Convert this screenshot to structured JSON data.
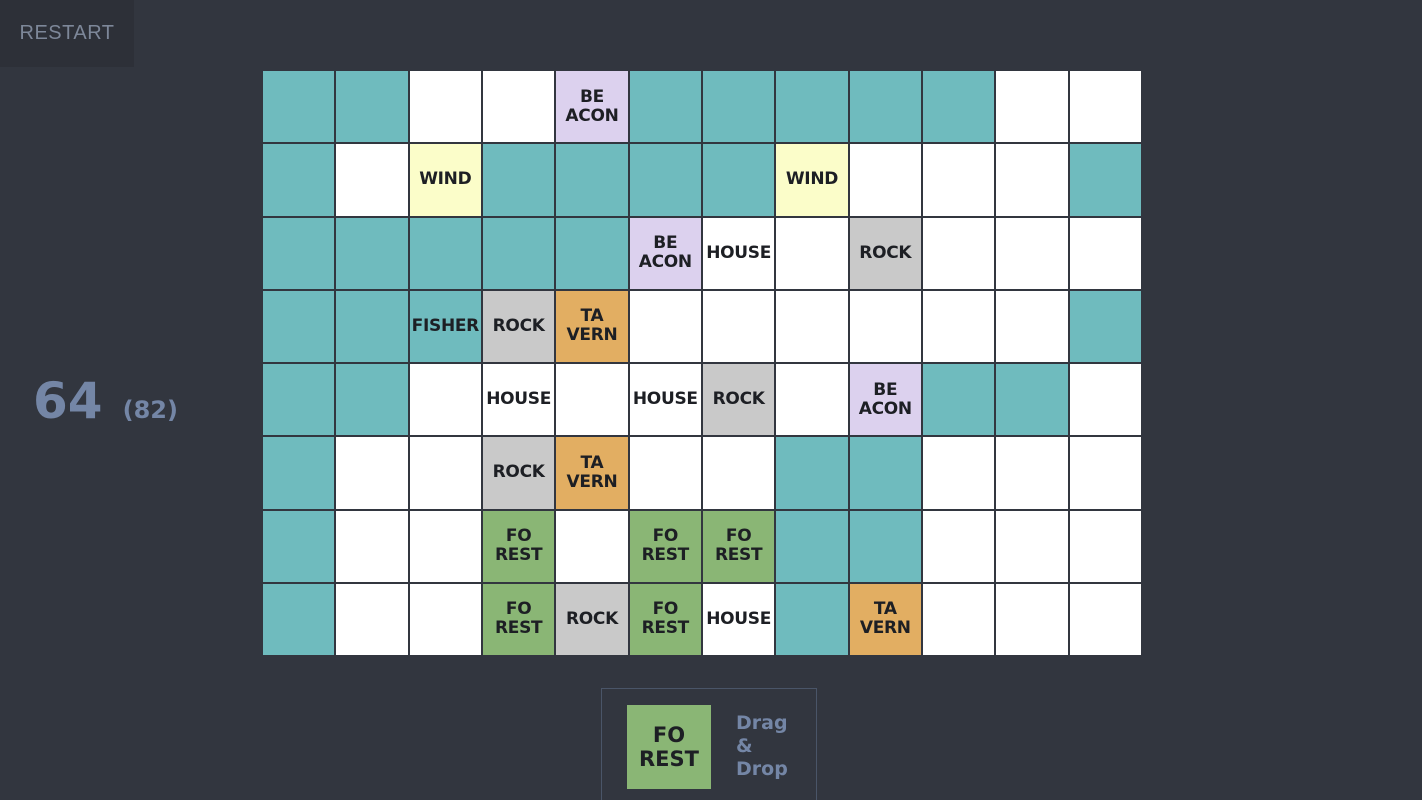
{
  "header": {
    "restart_label": "RESTART"
  },
  "score": {
    "current": "64",
    "best": "(82)"
  },
  "board": {
    "columns": 12,
    "rows": [
      [
        {
          "type": "water",
          "label": ""
        },
        {
          "type": "water",
          "label": ""
        },
        {
          "type": "empty",
          "label": ""
        },
        {
          "type": "empty",
          "label": ""
        },
        {
          "type": "beacon",
          "label": "BE\nACON"
        },
        {
          "type": "water",
          "label": ""
        },
        {
          "type": "water",
          "label": ""
        },
        {
          "type": "water",
          "label": ""
        },
        {
          "type": "water",
          "label": ""
        },
        {
          "type": "water",
          "label": ""
        },
        {
          "type": "empty",
          "label": ""
        },
        {
          "type": "empty",
          "label": ""
        }
      ],
      [
        {
          "type": "water",
          "label": ""
        },
        {
          "type": "empty",
          "label": ""
        },
        {
          "type": "wind",
          "label": "WIND"
        },
        {
          "type": "water",
          "label": ""
        },
        {
          "type": "water",
          "label": ""
        },
        {
          "type": "water",
          "label": ""
        },
        {
          "type": "water",
          "label": ""
        },
        {
          "type": "wind",
          "label": "WIND"
        },
        {
          "type": "empty",
          "label": ""
        },
        {
          "type": "empty",
          "label": ""
        },
        {
          "type": "empty",
          "label": ""
        },
        {
          "type": "water",
          "label": ""
        }
      ],
      [
        {
          "type": "water",
          "label": ""
        },
        {
          "type": "water",
          "label": ""
        },
        {
          "type": "water",
          "label": ""
        },
        {
          "type": "water",
          "label": ""
        },
        {
          "type": "water",
          "label": ""
        },
        {
          "type": "beacon",
          "label": "BE\nACON"
        },
        {
          "type": "house",
          "label": "HOUSE"
        },
        {
          "type": "empty",
          "label": ""
        },
        {
          "type": "rock",
          "label": "ROCK"
        },
        {
          "type": "empty",
          "label": ""
        },
        {
          "type": "empty",
          "label": ""
        },
        {
          "type": "empty",
          "label": ""
        }
      ],
      [
        {
          "type": "water",
          "label": ""
        },
        {
          "type": "water",
          "label": ""
        },
        {
          "type": "fisher",
          "label": "FISHER"
        },
        {
          "type": "rock",
          "label": "ROCK"
        },
        {
          "type": "tavern",
          "label": "TA\nVERN"
        },
        {
          "type": "empty",
          "label": ""
        },
        {
          "type": "empty",
          "label": ""
        },
        {
          "type": "empty",
          "label": ""
        },
        {
          "type": "empty",
          "label": ""
        },
        {
          "type": "empty",
          "label": ""
        },
        {
          "type": "empty",
          "label": ""
        },
        {
          "type": "water",
          "label": ""
        }
      ],
      [
        {
          "type": "water",
          "label": ""
        },
        {
          "type": "water",
          "label": ""
        },
        {
          "type": "empty",
          "label": ""
        },
        {
          "type": "house",
          "label": "HOUSE"
        },
        {
          "type": "empty",
          "label": ""
        },
        {
          "type": "house",
          "label": "HOUSE"
        },
        {
          "type": "rock",
          "label": "ROCK"
        },
        {
          "type": "empty",
          "label": ""
        },
        {
          "type": "beacon",
          "label": "BE\nACON"
        },
        {
          "type": "water",
          "label": ""
        },
        {
          "type": "water",
          "label": ""
        },
        {
          "type": "empty",
          "label": ""
        }
      ],
      [
        {
          "type": "water",
          "label": ""
        },
        {
          "type": "empty",
          "label": ""
        },
        {
          "type": "empty",
          "label": ""
        },
        {
          "type": "rock",
          "label": "ROCK"
        },
        {
          "type": "tavern",
          "label": "TA\nVERN"
        },
        {
          "type": "empty",
          "label": ""
        },
        {
          "type": "empty",
          "label": ""
        },
        {
          "type": "water",
          "label": ""
        },
        {
          "type": "water",
          "label": ""
        },
        {
          "type": "empty",
          "label": ""
        },
        {
          "type": "empty",
          "label": ""
        },
        {
          "type": "empty",
          "label": ""
        }
      ],
      [
        {
          "type": "water",
          "label": ""
        },
        {
          "type": "empty",
          "label": ""
        },
        {
          "type": "empty",
          "label": ""
        },
        {
          "type": "forest",
          "label": "FO\nREST"
        },
        {
          "type": "empty",
          "label": ""
        },
        {
          "type": "forest",
          "label": "FO\nREST"
        },
        {
          "type": "forest",
          "label": "FO\nREST"
        },
        {
          "type": "water",
          "label": ""
        },
        {
          "type": "water",
          "label": ""
        },
        {
          "type": "empty",
          "label": ""
        },
        {
          "type": "empty",
          "label": ""
        },
        {
          "type": "empty",
          "label": ""
        }
      ],
      [
        {
          "type": "water",
          "label": ""
        },
        {
          "type": "empty",
          "label": ""
        },
        {
          "type": "empty",
          "label": ""
        },
        {
          "type": "forest",
          "label": "FO\nREST"
        },
        {
          "type": "rock",
          "label": "ROCK"
        },
        {
          "type": "forest",
          "label": "FO\nREST"
        },
        {
          "type": "house",
          "label": "HOUSE"
        },
        {
          "type": "water",
          "label": ""
        },
        {
          "type": "tavern",
          "label": "TA\nVERN"
        },
        {
          "type": "empty",
          "label": ""
        },
        {
          "type": "empty",
          "label": ""
        },
        {
          "type": "empty",
          "label": ""
        }
      ]
    ]
  },
  "tray": {
    "next_tile": {
      "type": "forest",
      "label": "FO\nREST"
    },
    "hint_lines": [
      "Drag",
      "&",
      "Drop"
    ]
  },
  "colors": {
    "background": "#32363f",
    "water": "#6fbbbe",
    "empty": "#ffffff",
    "wind": "#fbfdc9",
    "beacon": "#dcd1ee",
    "rock": "#c9c9c9",
    "tavern": "#e2ae62",
    "forest": "#8ab675",
    "accent_text": "#7486a6"
  }
}
